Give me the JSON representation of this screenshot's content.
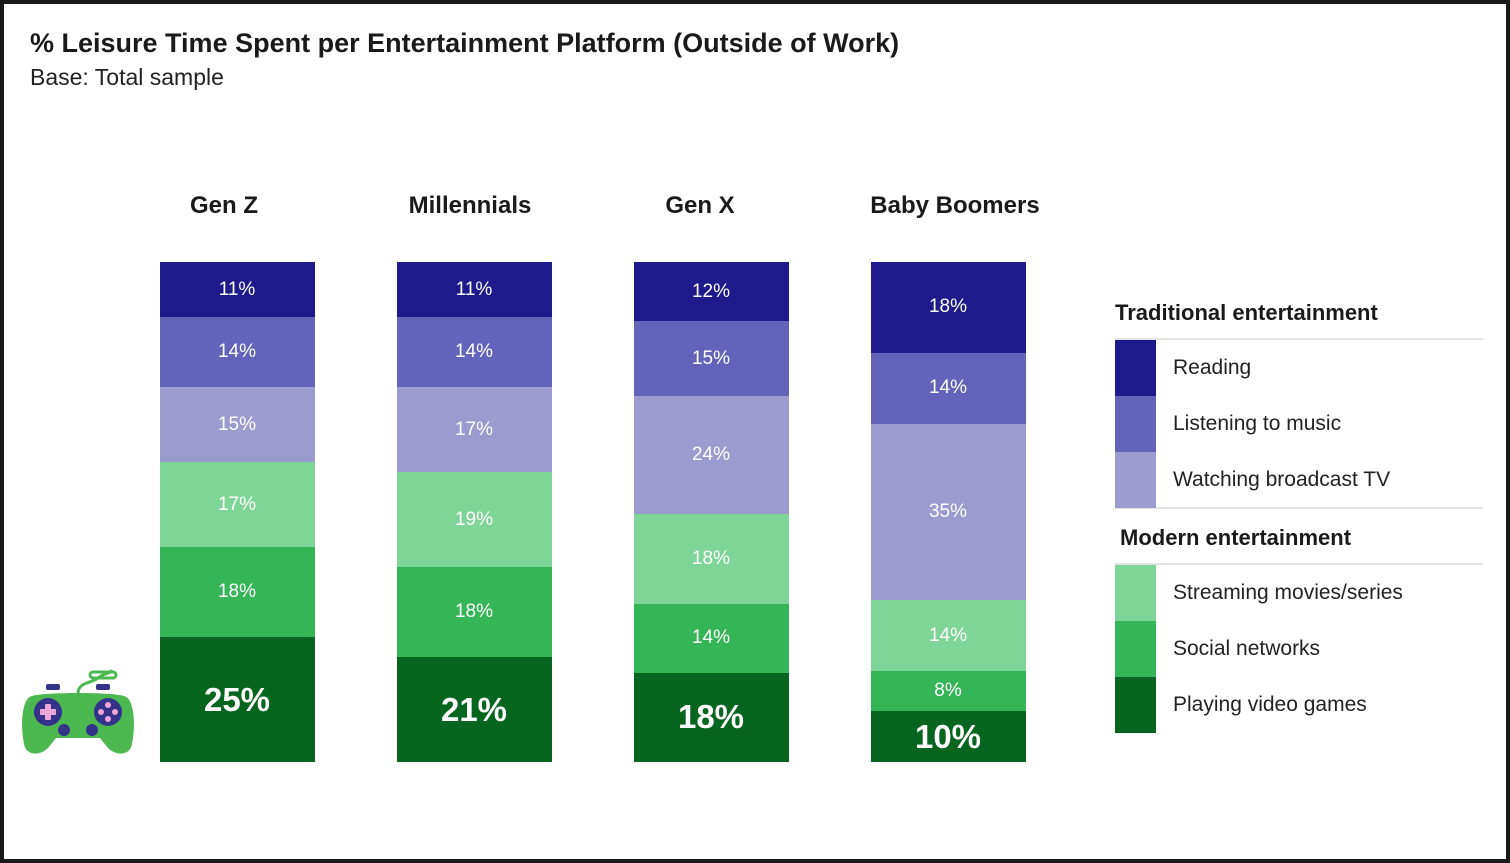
{
  "title": "% Leisure Time Spent per Entertainment Platform (Outside of Work)",
  "subtitle": "Base: Total sample",
  "colors": {
    "reading": "#1e1a8c",
    "music": "#6364b9",
    "tv": "#9b9bd0",
    "streaming": "#7fd597",
    "social": "#35b656",
    "games": "#07651f"
  },
  "legend": {
    "traditional_title": "Traditional entertainment",
    "modern_title": "Modern entertainment",
    "items": [
      {
        "label": "Reading",
        "color": "#1e1a8c"
      },
      {
        "label": "Listening to music",
        "color": "#6364b9"
      },
      {
        "label": "Watching broadcast TV",
        "color": "#9b9bd0"
      },
      {
        "label": "Streaming movies/series",
        "color": "#7fd597"
      },
      {
        "label": "Social networks",
        "color": "#35b656"
      },
      {
        "label": "Playing video games",
        "color": "#07651f"
      }
    ]
  },
  "icon": "game-controller-icon",
  "chart_data": {
    "type": "bar",
    "stacked": true,
    "categories": [
      "Gen Z",
      "Millennials",
      "Gen X",
      "Baby Boomers"
    ],
    "series": [
      {
        "name": "Reading",
        "values": [
          11,
          11,
          12,
          18
        ],
        "labels": [
          "11%",
          "11%",
          "12%",
          "18%"
        ]
      },
      {
        "name": "Listening to music",
        "values": [
          14,
          14,
          15,
          14
        ],
        "labels": [
          "14%",
          "14%",
          "15%",
          "14%"
        ]
      },
      {
        "name": "Watching broadcast TV",
        "values": [
          15,
          17,
          24,
          35
        ],
        "labels": [
          "15%",
          "17%",
          "24%",
          "35%"
        ]
      },
      {
        "name": "Streaming movies/series",
        "values": [
          17,
          19,
          18,
          14
        ],
        "labels": [
          "17%",
          "19%",
          "18%",
          "14%"
        ]
      },
      {
        "name": "Social networks",
        "values": [
          18,
          18,
          14,
          8
        ],
        "labels": [
          "18%",
          "18%",
          "14%",
          "8%"
        ]
      },
      {
        "name": "Playing video games",
        "values": [
          25,
          21,
          18,
          10
        ],
        "labels": [
          "25%",
          "21%",
          "18%",
          "10%"
        ]
      }
    ],
    "stack_order": "top-to-bottom",
    "legend_placement": "right",
    "grid": false
  }
}
